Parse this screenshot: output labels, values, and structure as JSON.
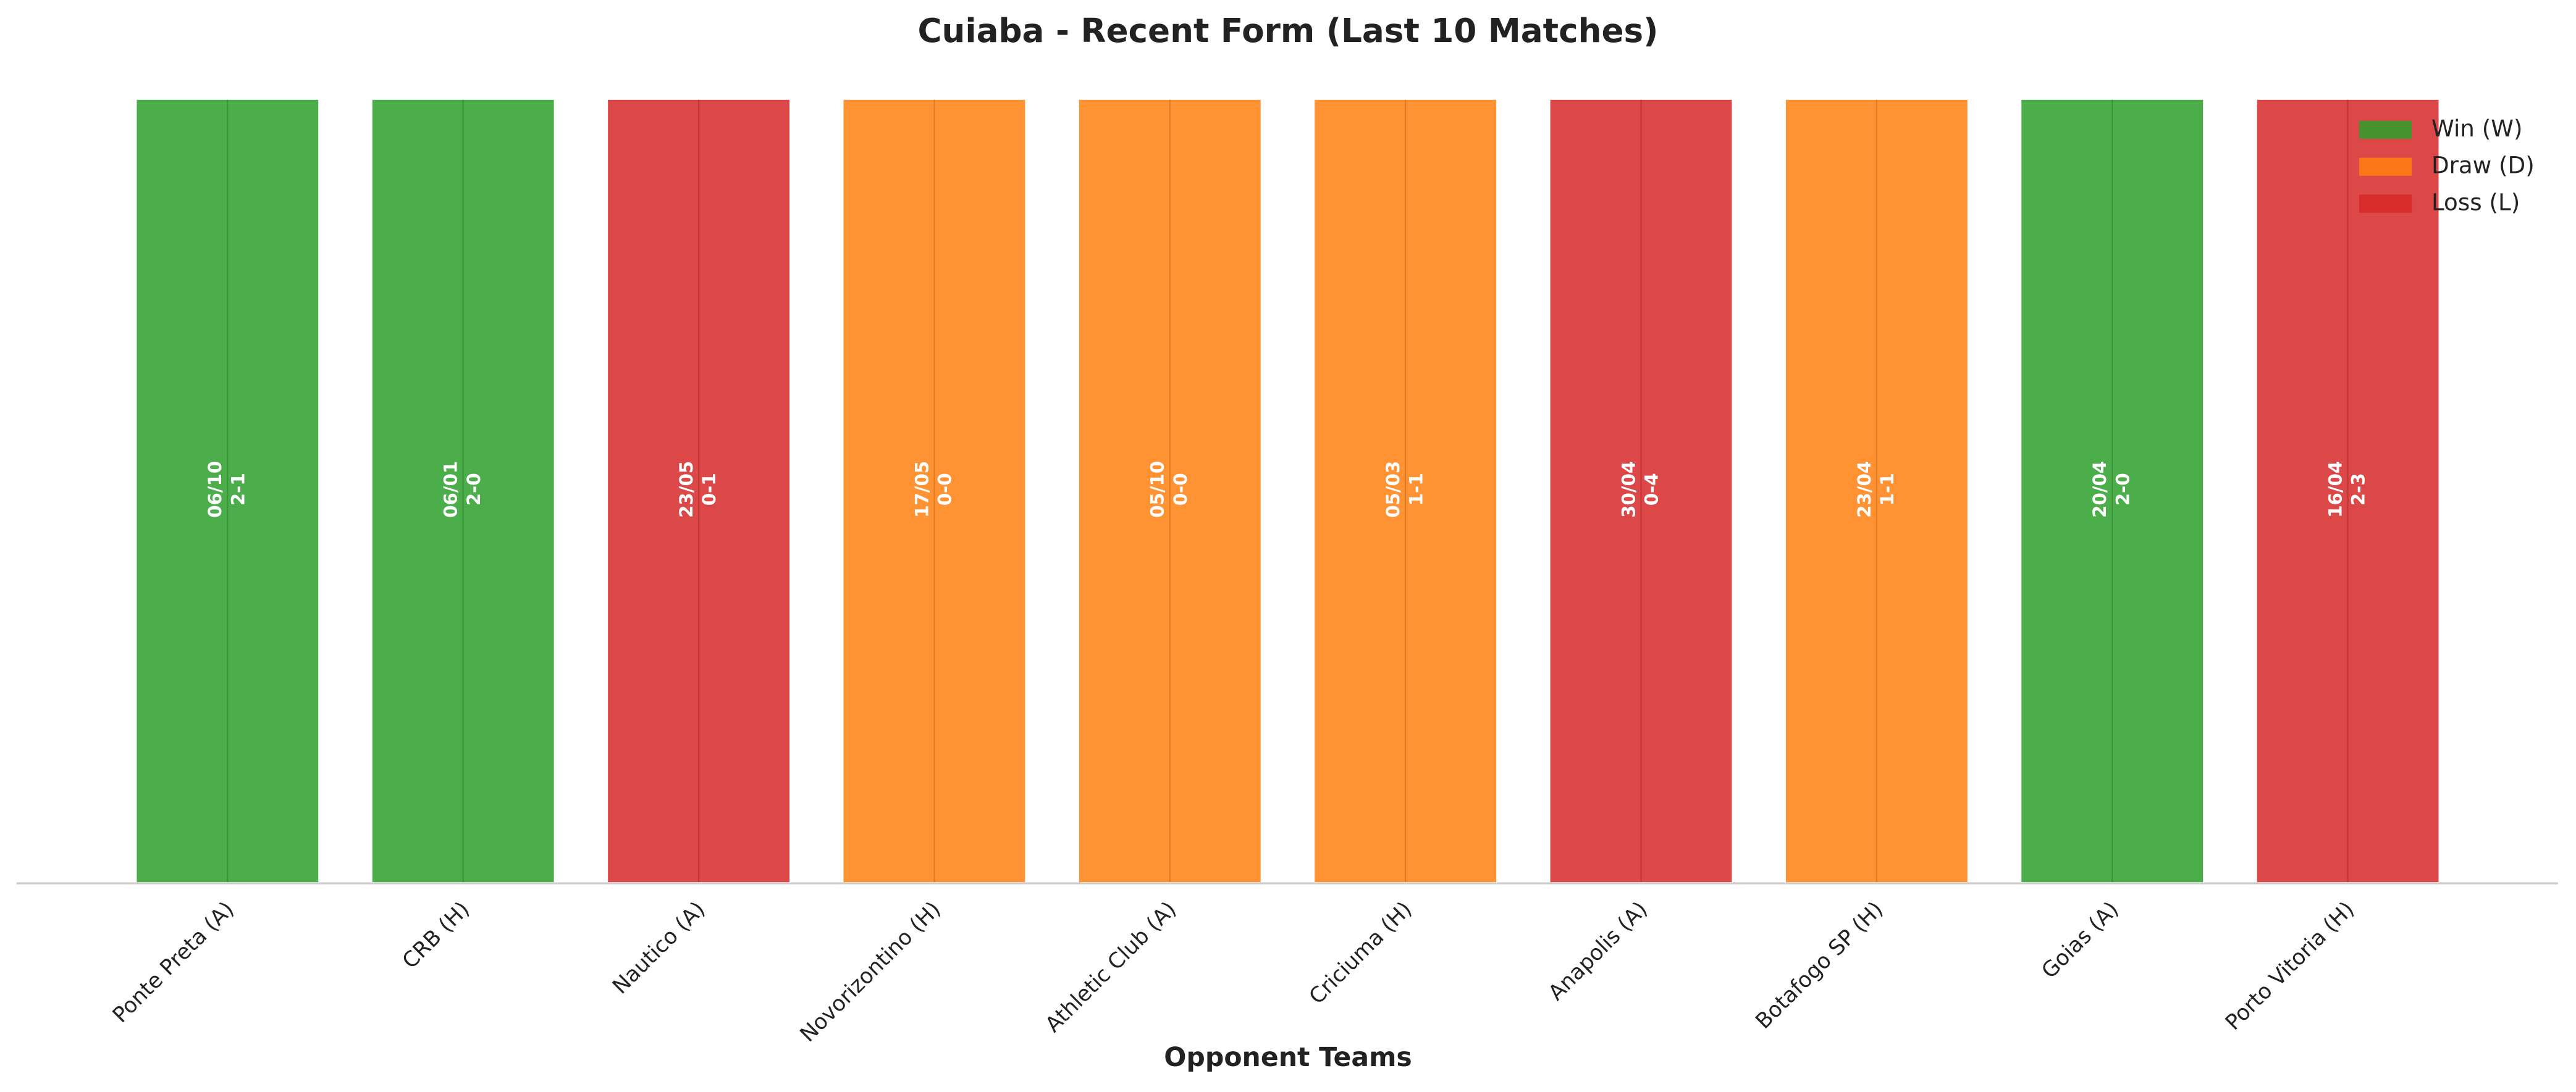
{
  "chart_data": {
    "type": "bar",
    "title": "Cuiaba - Recent Form (Last 10 Matches)",
    "x_label": "Opponent Teams",
    "categories": [
      "Ponte Preta (A)",
      "CRB (H)",
      "Nautico (A)",
      "Novorizontino (H)",
      "Athletic Club (A)",
      "Criciuma (H)",
      "Anapolis (A)",
      "Botafogo SP (H)",
      "Goias (A)",
      "Porto Vitoria (H)"
    ],
    "values": [
      1,
      1,
      1,
      1,
      1,
      1,
      1,
      1,
      1,
      1
    ],
    "dates": [
      "06/10",
      "06/01",
      "23/05",
      "17/05",
      "05/10",
      "05/03",
      "30/04",
      "23/04",
      "20/04",
      "16/04"
    ],
    "scores": [
      "2-1",
      "2-0",
      "0-1",
      "0-0",
      "0-0",
      "1-1",
      "0-4",
      "1-1",
      "2-0",
      "2-3"
    ],
    "colors": [
      "#2ca02c",
      "#2ca02c",
      "#d62728",
      "#ff7f0e",
      "#ff7f0e",
      "#ff7f0e",
      "#d62728",
      "#ff7f0e",
      "#2ca02c",
      "#d62728"
    ],
    "ylim": [
      0,
      1
    ],
    "grid": true,
    "legend_position": "upper right",
    "legend": [
      {
        "name": "Win (W)",
        "color": "#2ca02c"
      },
      {
        "name": "Draw (D)",
        "color": "#ff7f0e"
      },
      {
        "name": "Loss (L)",
        "color": "#d62728"
      }
    ]
  }
}
